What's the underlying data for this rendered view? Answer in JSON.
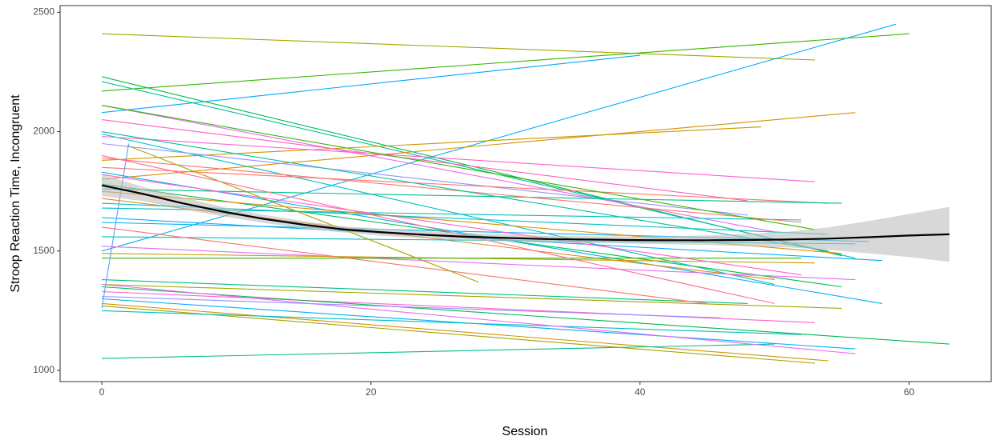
{
  "chart_data": {
    "type": "line",
    "x_label": "Session",
    "y_label": "Stroop Reaction Time, Incongruent",
    "xlim": [
      -3.1,
      66.1
    ],
    "ylim": [
      953,
      2528
    ],
    "xticks": [
      0,
      20,
      40,
      60
    ],
    "yticks": [
      1000,
      1500,
      2000,
      2500
    ],
    "series": [
      {
        "color": "#a3a500",
        "x": [
          0,
          53
        ],
        "values": [
          2410,
          2300
        ]
      },
      {
        "color": "#39b600",
        "x": [
          0,
          60
        ],
        "values": [
          2170,
          2410
        ]
      },
      {
        "color": "#00b0f6",
        "x": [
          0,
          59
        ],
        "values": [
          1500,
          2450
        ]
      },
      {
        "color": "#00a9ff",
        "x": [
          0,
          40
        ],
        "values": [
          2080,
          2320
        ]
      },
      {
        "color": "#00bb4e",
        "x": [
          0,
          55
        ],
        "values": [
          2230,
          1480
        ]
      },
      {
        "color": "#00c19a",
        "x": [
          0,
          56
        ],
        "values": [
          2210,
          1470
        ]
      },
      {
        "color": "#e76bf3",
        "x": [
          0,
          50
        ],
        "values": [
          2110,
          1580
        ]
      },
      {
        "color": "#d89000",
        "x": [
          0,
          56
        ],
        "values": [
          1800,
          2080
        ]
      },
      {
        "color": "#c99800",
        "x": [
          0,
          49
        ],
        "values": [
          1880,
          2020
        ]
      },
      {
        "color": "#00bfc4",
        "x": [
          0,
          50
        ],
        "values": [
          1990,
          1360
        ]
      },
      {
        "color": "#9590ff",
        "x": [
          0,
          48
        ],
        "values": [
          1950,
          1650
        ]
      },
      {
        "color": "#ff62bc",
        "x": [
          0,
          48
        ],
        "values": [
          2050,
          1710
        ]
      },
      {
        "color": "#fd61d1",
        "x": [
          0,
          53
        ],
        "values": [
          1980,
          1790
        ]
      },
      {
        "color": "#f8766d",
        "x": [
          0,
          54
        ],
        "values": [
          1850,
          1700
        ]
      },
      {
        "color": "#00b0f6",
        "x": [
          0,
          58
        ],
        "values": [
          1830,
          1280
        ]
      },
      {
        "color": "#00c08b",
        "x": [
          0,
          55
        ],
        "values": [
          1760,
          1700
        ]
      },
      {
        "color": "#00bfc4",
        "x": [
          0,
          52
        ],
        "values": [
          1680,
          1630
        ]
      },
      {
        "color": "#00a9ff",
        "x": [
          0,
          58
        ],
        "values": [
          1640,
          1460
        ]
      },
      {
        "color": "#00b0f6",
        "x": [
          0,
          57
        ],
        "values": [
          1620,
          1540
        ]
      },
      {
        "color": "#e7861b",
        "x": [
          0,
          50
        ],
        "values": [
          1720,
          1380
        ]
      },
      {
        "color": "#00bb4e",
        "x": [
          0,
          55
        ],
        "values": [
          1780,
          1350
        ]
      },
      {
        "color": "#e76bf3",
        "x": [
          0,
          56
        ],
        "values": [
          1520,
          1380
        ]
      },
      {
        "color": "#c99800",
        "x": [
          0,
          53
        ],
        "values": [
          1490,
          1450
        ]
      },
      {
        "color": "#39b600",
        "x": [
          0,
          52
        ],
        "values": [
          1470,
          1470
        ]
      },
      {
        "color": "#a3a500",
        "x": [
          0,
          55
        ],
        "values": [
          1360,
          1260
        ]
      },
      {
        "color": "#00bf7d",
        "x": [
          0,
          48
        ],
        "values": [
          1380,
          1280
        ]
      },
      {
        "color": "#fd61d1",
        "x": [
          0,
          53
        ],
        "values": [
          1330,
          1200
        ]
      },
      {
        "color": "#00b0f6",
        "x": [
          0,
          56
        ],
        "values": [
          1300,
          1090
        ]
      },
      {
        "color": "#d89000",
        "x": [
          0,
          54
        ],
        "values": [
          1280,
          1040
        ]
      },
      {
        "color": "#a3a500",
        "x": [
          0,
          53
        ],
        "values": [
          1270,
          1030
        ]
      },
      {
        "color": "#00bfc4",
        "x": [
          0,
          52
        ],
        "values": [
          1250,
          1150
        ]
      },
      {
        "color": "#00bb4e",
        "x": [
          0,
          63
        ],
        "values": [
          1350,
          1110
        ]
      },
      {
        "color": "#00c08b",
        "x": [
          0,
          50
        ],
        "values": [
          1050,
          1110
        ]
      },
      {
        "color": "#e76bf3",
        "x": [
          0,
          56
        ],
        "values": [
          1360,
          1070
        ]
      },
      {
        "color": "#9590ff",
        "x": [
          0,
          46
        ],
        "values": [
          1310,
          1220
        ]
      },
      {
        "color": "#619cff",
        "x": [
          0,
          2
        ],
        "values": [
          1260,
          1950
        ]
      },
      {
        "color": "#f8766d",
        "x": [
          0,
          52
        ],
        "values": [
          1890,
          1620
        ]
      },
      {
        "color": "#fd61d1",
        "x": [
          0,
          52
        ],
        "values": [
          1820,
          1400
        ]
      },
      {
        "color": "#d89000",
        "x": [
          0,
          55
        ],
        "values": [
          1750,
          1490
        ]
      },
      {
        "color": "#00bfc4",
        "x": [
          0,
          56
        ],
        "values": [
          1560,
          1530
        ]
      },
      {
        "color": "#00bfc4",
        "x": [
          0,
          54
        ],
        "values": [
          1700,
          1570
        ]
      },
      {
        "color": "#f8766d",
        "x": [
          0,
          45
        ],
        "values": [
          1600,
          1280
        ]
      },
      {
        "color": "#a3a500",
        "x": [
          2,
          28
        ],
        "values": [
          1940,
          1370
        ]
      },
      {
        "color": "#39b600",
        "x": [
          0,
          53
        ],
        "values": [
          2110,
          1590
        ]
      },
      {
        "color": "#00c19a",
        "x": [
          0,
          54
        ],
        "values": [
          2000,
          1500
        ]
      },
      {
        "color": "#ff6c91",
        "x": [
          0,
          50
        ],
        "values": [
          1900,
          1280
        ]
      }
    ],
    "smooth": {
      "color": "#000000",
      "band_color": "#bebebe",
      "x": [
        0,
        3,
        6,
        9,
        12,
        15,
        18,
        21,
        24,
        27,
        30,
        33,
        36,
        39,
        42,
        45,
        48,
        51,
        54,
        57,
        60,
        63
      ],
      "values": [
        1775,
        1740,
        1700,
        1665,
        1635,
        1610,
        1590,
        1578,
        1568,
        1560,
        1555,
        1550,
        1548,
        1546,
        1545,
        1545,
        1546,
        1548,
        1552,
        1558,
        1565,
        1570
      ],
      "lower": [
        1730,
        1710,
        1675,
        1645,
        1618,
        1595,
        1577,
        1563,
        1553,
        1545,
        1540,
        1536,
        1534,
        1531,
        1528,
        1525,
        1520,
        1515,
        1505,
        1490,
        1475,
        1455
      ],
      "upper": [
        1820,
        1770,
        1725,
        1685,
        1652,
        1625,
        1603,
        1593,
        1583,
        1575,
        1570,
        1564,
        1562,
        1561,
        1562,
        1565,
        1572,
        1581,
        1599,
        1626,
        1655,
        1685
      ]
    }
  }
}
